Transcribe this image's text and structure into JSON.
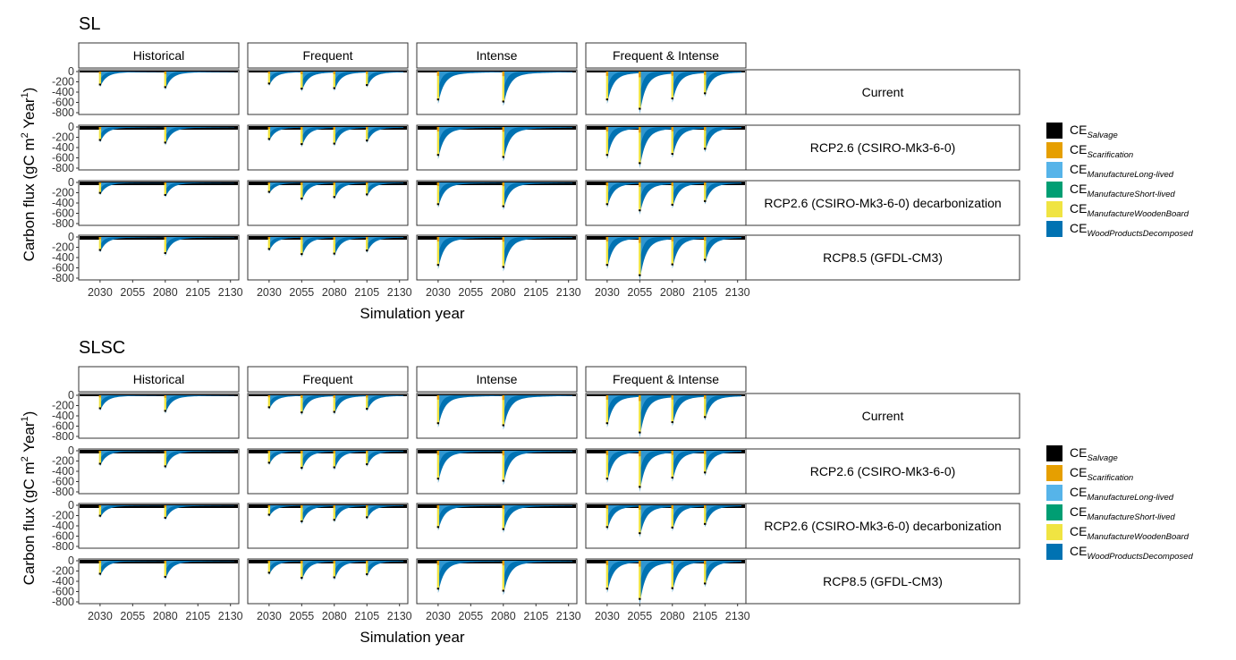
{
  "chart_data": [
    {
      "type": "bar",
      "title": "SL",
      "xlabel": "Simulation year",
      "ylabel": "Carbon flux (gC m",
      "ylabel_sup1": "2",
      "ylabel_mid": " Year",
      "ylabel_sup2": "1",
      "ylabel_end": ")",
      "ylim": [
        -800,
        0
      ],
      "yticks": [
        "0",
        "-200",
        "-400",
        "-600",
        "-800"
      ],
      "xticks": [
        "2030",
        "2055",
        "2080",
        "2105",
        "2130"
      ],
      "x_range": [
        2015,
        2135
      ],
      "columns": [
        "Historical",
        "Frequent",
        "Intense",
        "Frequent & Intense"
      ],
      "rows": [
        "Current",
        "RCP2.6 (CSIRO-Mk3-6-0)",
        "RCP2.6 (CSIRO-Mk3-6-0) decarbonization",
        "RCP8.5 (GFDL-CM3)"
      ],
      "series_names": [
        "Salvage",
        "Scarification",
        "ManufactureLong-lived",
        "ManufactureShort-lived",
        "ManufactureWoodenBoard",
        "WoodProductsDecomposed"
      ],
      "panels": [
        [
          {
            "events": [
              {
                "year": 2030,
                "peak": -270
              },
              {
                "year": 2080,
                "peak": -320
              }
            ]
          },
          {
            "events": [
              {
                "year": 2030,
                "peak": -250
              },
              {
                "year": 2055,
                "peak": -350
              },
              {
                "year": 2080,
                "peak": -340
              },
              {
                "year": 2105,
                "peak": -280
              }
            ]
          },
          {
            "events": [
              {
                "year": 2030,
                "peak": -560
              },
              {
                "year": 2080,
                "peak": -600
              }
            ]
          },
          {
            "events": [
              {
                "year": 2030,
                "peak": -560
              },
              {
                "year": 2055,
                "peak": -740
              },
              {
                "year": 2080,
                "peak": -540
              },
              {
                "year": 2105,
                "peak": -440
              }
            ]
          }
        ],
        [
          {
            "events": [
              {
                "year": 2030,
                "peak": -270
              },
              {
                "year": 2080,
                "peak": -320
              }
            ]
          },
          {
            "events": [
              {
                "year": 2030,
                "peak": -250
              },
              {
                "year": 2055,
                "peak": -350
              },
              {
                "year": 2080,
                "peak": -340
              },
              {
                "year": 2105,
                "peak": -280
              }
            ]
          },
          {
            "events": [
              {
                "year": 2030,
                "peak": -560
              },
              {
                "year": 2080,
                "peak": -600
              }
            ]
          },
          {
            "events": [
              {
                "year": 2030,
                "peak": -560
              },
              {
                "year": 2055,
                "peak": -720
              },
              {
                "year": 2080,
                "peak": -540
              },
              {
                "year": 2105,
                "peak": -440
              }
            ]
          }
        ],
        [
          {
            "events": [
              {
                "year": 2030,
                "peak": -220
              },
              {
                "year": 2080,
                "peak": -260
              }
            ]
          },
          {
            "events": [
              {
                "year": 2030,
                "peak": -200
              },
              {
                "year": 2055,
                "peak": -330
              },
              {
                "year": 2080,
                "peak": -300
              },
              {
                "year": 2105,
                "peak": -250
              }
            ]
          },
          {
            "events": [
              {
                "year": 2030,
                "peak": -440
              },
              {
                "year": 2080,
                "peak": -480
              }
            ]
          },
          {
            "events": [
              {
                "year": 2030,
                "peak": -440
              },
              {
                "year": 2055,
                "peak": -560
              },
              {
                "year": 2080,
                "peak": -450
              },
              {
                "year": 2105,
                "peak": -380
              }
            ]
          }
        ],
        [
          {
            "events": [
              {
                "year": 2030,
                "peak": -270
              },
              {
                "year": 2080,
                "peak": -330
              }
            ]
          },
          {
            "events": [
              {
                "year": 2030,
                "peak": -250
              },
              {
                "year": 2055,
                "peak": -350
              },
              {
                "year": 2080,
                "peak": -340
              },
              {
                "year": 2105,
                "peak": -280
              }
            ]
          },
          {
            "events": [
              {
                "year": 2030,
                "peak": -560
              },
              {
                "year": 2080,
                "peak": -600
              }
            ]
          },
          {
            "events": [
              {
                "year": 2030,
                "peak": -560
              },
              {
                "year": 2055,
                "peak": -760
              },
              {
                "year": 2080,
                "peak": -550
              },
              {
                "year": 2105,
                "peak": -460
              }
            ]
          }
        ]
      ]
    },
    {
      "type": "bar",
      "title": "SLSC",
      "xlabel": "Simulation year",
      "ylabel": "Carbon flux (gC m",
      "ylabel_sup1": "2",
      "ylabel_mid": " Year",
      "ylabel_sup2": "1",
      "ylabel_end": ")",
      "ylim": [
        -800,
        0
      ],
      "yticks": [
        "0",
        "-200",
        "-400",
        "-600",
        "-800"
      ],
      "xticks": [
        "2030",
        "2055",
        "2080",
        "2105",
        "2130"
      ],
      "x_range": [
        2015,
        2135
      ],
      "columns": [
        "Historical",
        "Frequent",
        "Intense",
        "Frequent & Intense"
      ],
      "rows": [
        "Current",
        "RCP2.6 (CSIRO-Mk3-6-0)",
        "RCP2.6 (CSIRO-Mk3-6-0) decarbonization",
        "RCP8.5 (GFDL-CM3)"
      ],
      "series_names": [
        "Salvage",
        "Scarification",
        "ManufactureLong-lived",
        "ManufactureShort-lived",
        "ManufactureWoodenBoard",
        "WoodProductsDecomposed"
      ],
      "panels": [
        [
          {
            "events": [
              {
                "year": 2030,
                "peak": -270
              },
              {
                "year": 2080,
                "peak": -320
              }
            ]
          },
          {
            "events": [
              {
                "year": 2030,
                "peak": -250
              },
              {
                "year": 2055,
                "peak": -350
              },
              {
                "year": 2080,
                "peak": -340
              },
              {
                "year": 2105,
                "peak": -280
              }
            ]
          },
          {
            "events": [
              {
                "year": 2030,
                "peak": -560
              },
              {
                "year": 2080,
                "peak": -600
              }
            ]
          },
          {
            "events": [
              {
                "year": 2030,
                "peak": -560
              },
              {
                "year": 2055,
                "peak": -740
              },
              {
                "year": 2080,
                "peak": -540
              },
              {
                "year": 2105,
                "peak": -440
              }
            ]
          }
        ],
        [
          {
            "events": [
              {
                "year": 2030,
                "peak": -270
              },
              {
                "year": 2080,
                "peak": -320
              }
            ]
          },
          {
            "events": [
              {
                "year": 2030,
                "peak": -250
              },
              {
                "year": 2055,
                "peak": -350
              },
              {
                "year": 2080,
                "peak": -340
              },
              {
                "year": 2105,
                "peak": -280
              }
            ]
          },
          {
            "events": [
              {
                "year": 2030,
                "peak": -560
              },
              {
                "year": 2080,
                "peak": -600
              }
            ]
          },
          {
            "events": [
              {
                "year": 2030,
                "peak": -560
              },
              {
                "year": 2055,
                "peak": -720
              },
              {
                "year": 2080,
                "peak": -540
              },
              {
                "year": 2105,
                "peak": -440
              }
            ]
          }
        ],
        [
          {
            "events": [
              {
                "year": 2030,
                "peak": -220
              },
              {
                "year": 2080,
                "peak": -260
              }
            ]
          },
          {
            "events": [
              {
                "year": 2030,
                "peak": -200
              },
              {
                "year": 2055,
                "peak": -330
              },
              {
                "year": 2080,
                "peak": -300
              },
              {
                "year": 2105,
                "peak": -250
              }
            ]
          },
          {
            "events": [
              {
                "year": 2030,
                "peak": -440
              },
              {
                "year": 2080,
                "peak": -480
              }
            ]
          },
          {
            "events": [
              {
                "year": 2030,
                "peak": -440
              },
              {
                "year": 2055,
                "peak": -560
              },
              {
                "year": 2080,
                "peak": -450
              },
              {
                "year": 2105,
                "peak": -380
              }
            ]
          }
        ],
        [
          {
            "events": [
              {
                "year": 2030,
                "peak": -270
              },
              {
                "year": 2080,
                "peak": -330
              }
            ]
          },
          {
            "events": [
              {
                "year": 2030,
                "peak": -250
              },
              {
                "year": 2055,
                "peak": -350
              },
              {
                "year": 2080,
                "peak": -340
              },
              {
                "year": 2105,
                "peak": -280
              }
            ]
          },
          {
            "events": [
              {
                "year": 2030,
                "peak": -560
              },
              {
                "year": 2080,
                "peak": -600
              }
            ]
          },
          {
            "events": [
              {
                "year": 2030,
                "peak": -560
              },
              {
                "year": 2055,
                "peak": -760
              },
              {
                "year": 2080,
                "peak": -550
              },
              {
                "year": 2105,
                "peak": -460
              }
            ]
          }
        ]
      ]
    }
  ],
  "legend": {
    "prefix": "CE",
    "items": [
      {
        "sub": "Salvage",
        "color": "#000000"
      },
      {
        "sub": "Scarification",
        "color": "#E69F00"
      },
      {
        "sub": "ManufactureLong-lived",
        "color": "#56B4E9"
      },
      {
        "sub": "ManufactureShort-lived",
        "color": "#009E73"
      },
      {
        "sub": "ManufactureWoodenBoard",
        "color": "#F0E442"
      },
      {
        "sub": "WoodProductsDecomposed",
        "color": "#0072B2"
      }
    ]
  }
}
